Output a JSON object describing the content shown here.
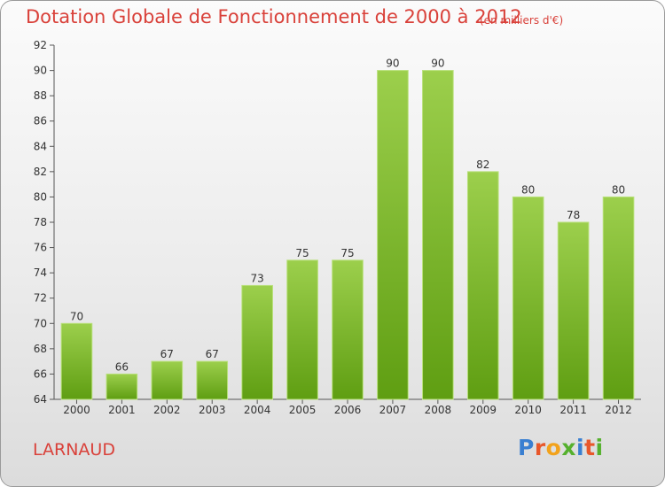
{
  "header": {
    "title": "Dotation Globale de Fonctionnement de 2000 à 2012",
    "subtitle": "(en milliers d'€)"
  },
  "footer": {
    "commune": "LARNAUD",
    "logo_letters": [
      "P",
      "r",
      "o",
      "x",
      "i",
      "t",
      "i"
    ]
  },
  "colors": {
    "title": "#d9413a",
    "bar_top": "#9ccf4c",
    "bar_bottom": "#5f9e12",
    "logo": [
      "#3a7fd1",
      "#e8572a",
      "#f2a21b",
      "#55b02d",
      "#3a7fd1",
      "#e8572a",
      "#55b02d"
    ]
  },
  "chart_data": {
    "type": "bar",
    "title": "Dotation Globale de Fonctionnement de 2000 à 2012",
    "subtitle": "(en milliers d'€)",
    "xlabel": "",
    "ylabel": "",
    "categories": [
      "2000",
      "2001",
      "2002",
      "2003",
      "2004",
      "2005",
      "2006",
      "2007",
      "2008",
      "2009",
      "2010",
      "2011",
      "2012"
    ],
    "values": [
      70,
      66,
      67,
      67,
      73,
      75,
      75,
      90,
      90,
      82,
      80,
      78,
      80
    ],
    "ylim": [
      64,
      92
    ],
    "yticks": [
      64,
      66,
      68,
      70,
      72,
      74,
      76,
      78,
      80,
      82,
      84,
      86,
      88,
      90,
      92
    ],
    "grid": false,
    "legend": "none"
  }
}
